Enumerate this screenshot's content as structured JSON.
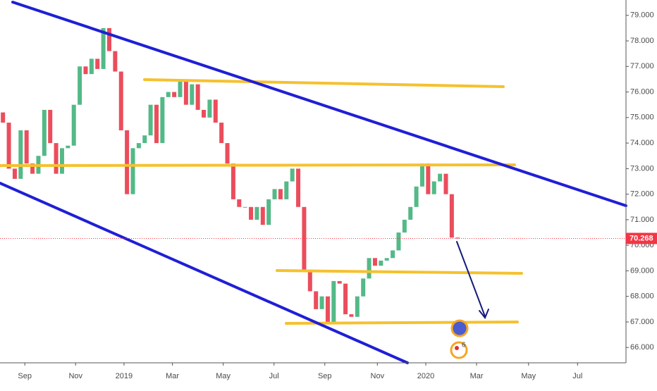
{
  "chart_data": {
    "type": "candlestick",
    "open": [
      75.2,
      74.8,
      73.0,
      72.6,
      74.5,
      73.2,
      72.8,
      73.5,
      75.3,
      74.0,
      72.8,
      73.8,
      73.9,
      75.5,
      77.0,
      76.7,
      77.3,
      76.9,
      78.5,
      77.6,
      76.8,
      74.5,
      72.0,
      73.8,
      74.0,
      74.3,
      75.5,
      74.0,
      75.8,
      76.0,
      75.8,
      76.4,
      75.5,
      76.3,
      75.3,
      75.0,
      75.7,
      74.8,
      74.0,
      73.2,
      71.8,
      71.5,
      71.5,
      71.0,
      71.5,
      70.8,
      71.8,
      72.2,
      71.8,
      72.5,
      73.0,
      71.5,
      69.0,
      68.2,
      67.5,
      68.0,
      67.0,
      68.6,
      68.5,
      67.3,
      67.2,
      68.0,
      68.7,
      69.5,
      69.2,
      69.4,
      69.5,
      69.8,
      70.5,
      71.0,
      71.5,
      72.3,
      73.2,
      72.0,
      72.5,
      72.8,
      72.0,
      70.3
    ],
    "close": [
      74.8,
      73.0,
      72.6,
      74.5,
      73.2,
      72.8,
      73.5,
      75.3,
      74.0,
      72.8,
      73.8,
      73.9,
      75.5,
      77.0,
      76.7,
      77.3,
      76.9,
      78.5,
      77.6,
      76.8,
      74.5,
      72.0,
      73.8,
      74.0,
      74.3,
      75.5,
      74.0,
      75.8,
      76.0,
      75.8,
      76.4,
      75.5,
      76.3,
      75.3,
      75.0,
      75.7,
      74.8,
      74.0,
      73.2,
      71.8,
      71.5,
      71.5,
      71.0,
      71.5,
      70.8,
      71.8,
      72.2,
      71.8,
      72.5,
      73.0,
      71.5,
      69.0,
      68.2,
      67.5,
      68.0,
      67.0,
      68.6,
      68.5,
      67.3,
      67.2,
      68.0,
      68.7,
      69.5,
      69.2,
      69.4,
      69.5,
      69.8,
      70.5,
      71.0,
      71.5,
      72.3,
      73.2,
      72.0,
      72.5,
      72.8,
      72.0,
      70.3,
      70.268
    ],
    "up_color": "#53b987",
    "down_color": "#eb4d5c",
    "xlim": [
      -0.5,
      105.5
    ],
    "xticks": [
      {
        "value": 3.7,
        "label": "Sep"
      },
      {
        "value": 12.3,
        "label": "Nov"
      },
      {
        "value": 20.5,
        "label": "2019"
      },
      {
        "value": 28.7,
        "label": "Mar"
      },
      {
        "value": 37.3,
        "label": "May"
      },
      {
        "value": 45.9,
        "label": "Jul"
      },
      {
        "value": 54.5,
        "label": "Sep"
      },
      {
        "value": 63.4,
        "label": "Nov"
      },
      {
        "value": 71.6,
        "label": "2020"
      },
      {
        "value": 80.2,
        "label": "Mar"
      },
      {
        "value": 89.0,
        "label": "May"
      },
      {
        "value": 97.3,
        "label": "Jul"
      }
    ],
    "ylim": [
      65.4,
      79.6
    ],
    "yticks": [
      {
        "value": 66,
        "label": "66.000"
      },
      {
        "value": 67,
        "label": "67.000"
      },
      {
        "value": 68,
        "label": "68.000"
      },
      {
        "value": 69,
        "label": "69.000"
      },
      {
        "value": 70,
        "label": "70.000"
      },
      {
        "value": 71,
        "label": "71.000"
      },
      {
        "value": 72,
        "label": "72.000"
      },
      {
        "value": 73,
        "label": "73.000"
      },
      {
        "value": 74,
        "label": "74.000"
      },
      {
        "value": 75,
        "label": "75.000"
      },
      {
        "value": 76,
        "label": "76.000"
      },
      {
        "value": 77,
        "label": "77.000"
      },
      {
        "value": 78,
        "label": "78.000"
      },
      {
        "value": 79,
        "label": "79.000"
      }
    ],
    "last_price": 70.268,
    "last_price_color": "#f23645",
    "event_badge": "6"
  }
}
